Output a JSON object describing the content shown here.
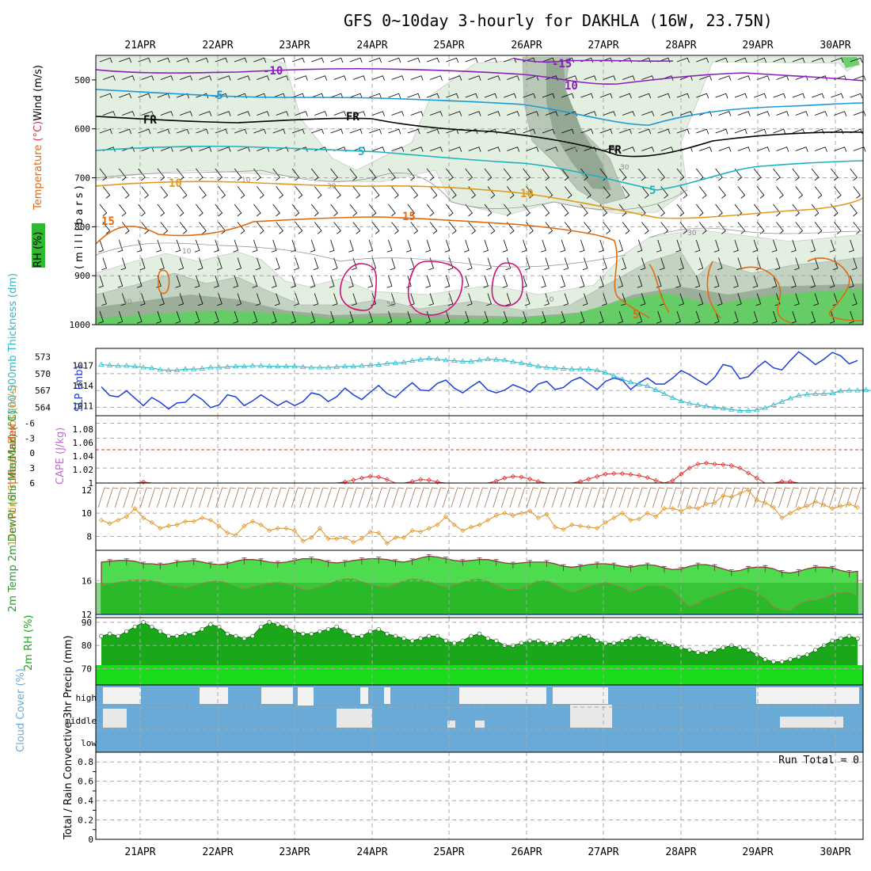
{
  "title": "GFS 0~10day 3-hourly for DAKHLA (16W, 23.75N)",
  "dates": [
    "21APR",
    "22APR",
    "23APR",
    "24APR",
    "25APR",
    "26APR",
    "27APR",
    "28APR",
    "29APR",
    "30APR"
  ],
  "colors": {
    "purple": "#8b1bbf",
    "blue": "#1a9ad6",
    "cyan": "#19b3c0",
    "black": "#000000",
    "gold": "#e09a20",
    "orange": "#e06a10",
    "magenta": "#d0107a",
    "thick_blue": "#1e3fd4",
    "thick_cyan": "#30b8c8",
    "lifted_red": "#e03030",
    "wind_orange": "#e09a30",
    "barb_brown": "#a0745a",
    "temp_green": "#4ddc4d",
    "dew_green": "#2cbf2c",
    "rh_green": "#1aa81a",
    "cloud_blue": "#6aaad6",
    "cloud_white": "#f2f2f2",
    "precip_text": "#000000"
  },
  "chart_data": [
    {
      "type": "contour",
      "panel": "upper-air",
      "ylabel_left": [
        "RH (%)",
        "Temperature (°C)Wind (m/s)"
      ],
      "ylabel_right": "(millibars)",
      "yticks": [
        "500",
        "600",
        "700",
        "800",
        "900",
        "1000"
      ],
      "ylim": [
        450,
        1000
      ],
      "contour_labels": {
        "temperature": [
          "-15",
          "-10",
          "10",
          "-5",
          "FR",
          "FR",
          "FR",
          "5",
          "5",
          "10",
          "10",
          "15",
          "15",
          "5"
        ],
        "rh": [
          "10",
          "30",
          "30",
          "50",
          "50",
          "50",
          "30",
          "10",
          "10"
        ]
      }
    },
    {
      "type": "line",
      "panel": "thickness-slp",
      "ylabel_left": "1000-500mb Thickness (dm)",
      "ylabel_right": "SLP (mb)",
      "yticks_left": [
        "573",
        "570",
        "567",
        "564"
      ],
      "yticks_right": [
        "1017",
        "1014",
        "1011"
      ],
      "series": [
        {
          "name": "SLP",
          "values": [
            1013.8,
            1012.5,
            1012.3,
            1013.2,
            1012.1,
            1011.0,
            1012.2,
            1011.5,
            1010.5,
            1011.4,
            1011.5,
            1012.7,
            1011.9,
            1010.7,
            1011.1,
            1012.6,
            1012.3,
            1011.0,
            1011.7,
            1012.6,
            1011.8,
            1011.0,
            1011.7,
            1011.0,
            1011.6,
            1012.9,
            1012.6,
            1011.6,
            1012.3,
            1013.6,
            1012.6,
            1011.9,
            1013.0,
            1014.0,
            1012.8,
            1012.2,
            1013.4,
            1014.4,
            1013.3,
            1013.2,
            1014.3,
            1014.8,
            1013.6,
            1012.9,
            1013.8,
            1014.6,
            1013.3,
            1012.9,
            1013.3,
            1014.1,
            1013.6,
            1013.0,
            1014.2,
            1014.6,
            1013.4,
            1013.7,
            1014.7,
            1015.2,
            1014.3,
            1013.4,
            1014.6,
            1015.1,
            1014.8,
            1013.4,
            1014.4,
            1015.1,
            1014.2,
            1014.2,
            1015.1,
            1016.2,
            1015.6,
            1014.8,
            1014.1,
            1015.2,
            1017.1,
            1016.8,
            1015.0,
            1015.3,
            1016.6,
            1017.6,
            1016.6,
            1016.3,
            1017.7,
            1019.0,
            1018.1,
            1017.1,
            1017.9,
            1018.9,
            1018.4,
            1017.2,
            1017.7
          ]
        },
        {
          "name": "1000-500mb Thickness",
          "values": [
            571.6,
            571.5,
            571.4,
            571.4,
            571.3,
            571.1,
            571.0,
            570.7,
            570.6,
            570.6,
            570.8,
            570.8,
            570.9,
            571.1,
            571.1,
            571.2,
            571.3,
            571.3,
            571.4,
            571.4,
            571.3,
            571.3,
            571.3,
            571.3,
            571.2,
            571.1,
            571.1,
            571.1,
            571.2,
            571.3,
            571.3,
            571.4,
            571.5,
            571.6,
            571.8,
            571.9,
            572.0,
            572.3,
            572.5,
            572.7,
            572.6,
            572.4,
            572.3,
            572.2,
            572.2,
            572.4,
            572.6,
            572.5,
            572.4,
            572.1,
            571.9,
            571.6,
            571.3,
            571.1,
            571.0,
            570.9,
            570.8,
            570.8,
            570.8,
            570.6,
            570.2,
            569.6,
            569.0,
            568.5,
            568.1,
            567.8,
            567.1,
            566.4,
            565.7,
            565.1,
            564.7,
            564.4,
            564.2,
            564.0,
            563.8,
            563.6,
            563.4,
            563.4,
            563.5,
            563.9,
            564.4,
            565.0,
            565.6,
            566.1,
            566.3,
            566.4,
            566.4,
            566.5,
            566.9,
            567.0,
            567.0,
            567.1,
            566.9,
            566.8,
            566.8,
            566.9
          ]
        }
      ]
    },
    {
      "type": "line",
      "panel": "lifted-cape",
      "ylabel_left": "Lifted Index",
      "ylabel_right": "CAPE (J/kg)",
      "yticks_left": [
        "-6",
        "-3",
        "0",
        "3",
        "6"
      ],
      "yticks_right": [
        "1.08",
        "1.06",
        "1.04",
        "1.02",
        "1"
      ],
      "series": [
        {
          "name": "Lifted Index",
          "values": [
            6,
            6,
            6,
            6,
            6,
            5.8,
            6,
            6,
            6,
            6,
            6,
            6,
            6,
            6,
            6,
            6,
            6,
            6,
            6,
            6,
            6,
            6,
            6,
            6,
            6,
            6,
            6,
            6,
            6,
            5.8,
            5.4,
            5.0,
            4.7,
            4.8,
            5.3,
            6,
            6,
            5.7,
            5.3,
            5.4,
            5.8,
            6,
            6,
            6,
            6,
            6,
            6,
            5.6,
            5.0,
            4.7,
            4.8,
            5.2,
            5.7,
            6,
            6,
            6,
            6,
            5.7,
            5.2,
            4.7,
            4.2,
            4.1,
            4.1,
            4.3,
            4.5,
            4.9,
            5.5,
            6,
            5.5,
            4.2,
            3.0,
            2.2,
            2.0,
            2.2,
            2.3,
            2.5,
            3.0,
            4.0,
            5.0,
            6,
            6,
            5.7,
            5.7,
            6,
            6,
            6,
            6,
            6,
            6,
            6,
            6
          ]
        }
      ]
    },
    {
      "type": "line",
      "panel": "10m-wind",
      "ylabel": "10m Wind Speed & Barbs (m/s)",
      "yticks": [
        "12",
        "10",
        "8"
      ],
      "series": [
        {
          "name": "10m Wind Speed",
          "values": [
            9.4,
            9.1,
            9.4,
            9.7,
            10.4,
            9.6,
            9.2,
            8.7,
            8.9,
            9.0,
            9.3,
            9.3,
            9.6,
            9.4,
            8.9,
            8.3,
            8.1,
            8.9,
            9.3,
            9.0,
            8.5,
            8.7,
            8.7,
            8.5,
            7.6,
            7.9,
            8.7,
            7.8,
            7.8,
            7.9,
            7.5,
            7.8,
            8.4,
            8.3,
            7.4,
            7.9,
            7.9,
            8.5,
            8.4,
            8.7,
            9.0,
            9.7,
            9.0,
            8.5,
            8.8,
            9.0,
            9.4,
            9.8,
            10.0,
            9.8,
            10.0,
            10.2,
            9.6,
            9.9,
            8.8,
            8.6,
            9.0,
            8.9,
            8.8,
            8.7,
            9.2,
            9.6,
            10.0,
            9.4,
            9.5,
            10.0,
            9.7,
            10.4,
            10.4,
            10.2,
            10.5,
            10.4,
            10.8,
            10.9,
            11.5,
            11.4,
            11.7,
            12.0,
            11.1,
            10.9,
            10.5,
            9.6,
            10.0,
            10.4,
            10.6,
            11.0,
            10.7,
            10.4,
            10.6,
            10.8,
            10.5
          ]
        }
      ]
    },
    {
      "type": "area",
      "panel": "2m-temp",
      "ylabel": "2m Temp 2m DewPt (6hr Min/Max) (°C)",
      "yticks": [
        "16",
        "12"
      ],
      "series": [
        {
          "name": "2m Temp",
          "values": [
            18.2,
            18.3,
            18.4,
            18.4,
            18.3,
            18.0,
            18.0,
            17.9,
            18.0,
            18.2,
            18.3,
            18.4,
            18.2,
            18.0,
            17.9,
            18.0,
            18.3,
            18.5,
            18.5,
            18.4,
            18.2,
            18.1,
            18.2,
            18.4,
            18.6,
            18.6,
            18.5,
            18.2,
            18.1,
            18.2,
            18.4,
            18.5,
            18.6,
            18.6,
            18.5,
            18.3,
            18.2,
            18.4,
            18.7,
            18.9,
            18.8,
            18.6,
            18.4,
            18.3,
            18.4,
            18.5,
            18.5,
            18.3,
            18.1,
            18.0,
            18.1,
            18.2,
            18.2,
            18.2,
            18.0,
            17.7,
            17.6,
            17.7,
            17.9,
            18.0,
            18.0,
            17.9,
            17.7,
            17.6,
            17.8,
            17.9,
            17.8,
            17.5,
            17.3,
            17.4,
            17.7,
            17.9,
            17.9,
            17.7,
            17.4,
            17.1,
            17.2,
            17.5,
            17.6,
            17.6,
            17.4,
            17.0,
            16.9,
            17.1,
            17.4,
            17.6,
            17.6,
            17.5,
            17.2,
            17.0,
            17.1
          ]
        },
        {
          "name": "2m DewPt",
          "values": [
            15.5,
            15.6,
            15.8,
            16.0,
            16.1,
            16.1,
            16.0,
            15.8,
            15.4,
            15.3,
            15.1,
            15.4,
            15.7,
            15.9,
            16.0,
            15.7,
            15.3,
            15.0,
            15.3,
            15.5,
            15.7,
            15.8,
            15.6,
            15.4,
            14.9,
            14.9,
            15.3,
            15.6,
            16.0,
            16.2,
            16.2,
            15.9,
            15.5,
            15.3,
            15.2,
            15.6,
            16.0,
            16.2,
            16.1,
            15.9,
            15.5,
            15.2,
            15.5,
            15.8,
            16.1,
            16.2,
            15.9,
            15.5,
            15.0,
            14.9,
            15.1,
            15.5,
            16.0,
            16.0,
            15.6,
            15.0,
            14.6,
            14.9,
            15.3,
            15.6,
            15.8,
            15.5,
            15.2,
            14.7,
            15.0,
            15.4,
            15.4,
            15.3,
            14.8,
            13.8,
            12.9,
            13.3,
            13.9,
            14.2,
            14.6,
            14.9,
            15.2,
            15.0,
            14.6,
            13.9,
            12.9,
            12.5,
            12.4,
            13.2,
            13.6,
            13.7,
            13.9,
            14.4,
            14.6,
            14.6,
            14.2
          ]
        }
      ]
    },
    {
      "type": "area",
      "panel": "2m-rh",
      "ylabel": "2m RH (%)",
      "yticks": [
        "90",
        "80",
        "70"
      ],
      "series": [
        {
          "name": "2m RH",
          "values": [
            84,
            85,
            84,
            86,
            88,
            90,
            88,
            86,
            84,
            84,
            85,
            85,
            87,
            89,
            88,
            85,
            84,
            83,
            84,
            88,
            90,
            89,
            88,
            86,
            85,
            85,
            86,
            87,
            88,
            86,
            84,
            84,
            86,
            87,
            85,
            84,
            83,
            82,
            83,
            84,
            84,
            82,
            81,
            82,
            84,
            85,
            83,
            82,
            80,
            80,
            81,
            82,
            82,
            81,
            81,
            82,
            83,
            84,
            84,
            82,
            81,
            81,
            82,
            83,
            84,
            83,
            82,
            81,
            80,
            79,
            78,
            77,
            77,
            78,
            79,
            80,
            79,
            78,
            76,
            74,
            73,
            73,
            74,
            75,
            76,
            78,
            80,
            82,
            83,
            84,
            83
          ]
        }
      ]
    },
    {
      "type": "heatmap",
      "panel": "cloud-cover",
      "ylabel": "Cloud Cover (%)",
      "yticks": [
        "high",
        "middle",
        "low"
      ]
    },
    {
      "type": "bar",
      "panel": "precip",
      "ylabel": "Total / Rain Convective 3hr Precip (mm)",
      "yticks": [
        "0.8",
        "0.6",
        "0.4",
        "0.2",
        "0"
      ],
      "values": [],
      "annotation": "Run Total = 0"
    }
  ]
}
